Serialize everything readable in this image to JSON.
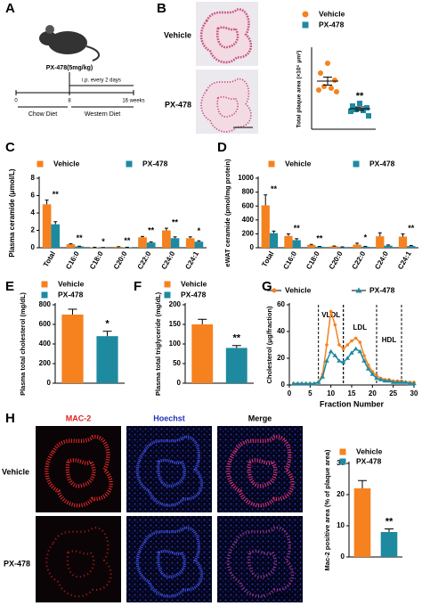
{
  "panel_labels": [
    "A",
    "B",
    "C",
    "D",
    "E",
    "F",
    "G",
    "H"
  ],
  "panel_a": {
    "drug": "PX-478(5mg/kg)",
    "dosing": "i.p. every 2 days",
    "timepoints": [
      "0",
      "8",
      "16 weeks"
    ],
    "phases": [
      "Chow Diet",
      "Western Diet"
    ]
  },
  "panel_b": {
    "row_labels": [
      "Vehicle",
      "PX-478"
    ]
  },
  "panel_h": {
    "column_labels": [
      "MAC-2",
      "Hoechst",
      "Merge"
    ],
    "row_labels": [
      "Vehicle",
      "PX-478"
    ]
  },
  "chart_data": [
    {
      "type": "dotplot",
      "y_label": "Total plaque area (×10⁵ μm²)",
      "ylim": [
        0,
        9
      ],
      "series": [
        {
          "name": "Vehicle",
          "color": "#f5821f",
          "marker": "circle",
          "values": [
            7.4,
            6.3,
            5.5,
            4.8,
            4.6,
            4.4,
            4.2
          ],
          "mean": 5.4,
          "error": 0.45
        },
        {
          "name": "PX-478",
          "color": "#1e8aa0",
          "marker": "square",
          "values": [
            2.9,
            2.6,
            2.4,
            2.2,
            2.1,
            2.0,
            1.5
          ],
          "mean": 2.3,
          "error": 0.2
        }
      ],
      "significance": [
        "**"
      ]
    },
    {
      "type": "bar",
      "y_label": "Plasma ceramide (μmol/L)",
      "ylim": [
        0,
        8
      ],
      "yticks": [
        0,
        2,
        4,
        6,
        8
      ],
      "categories": [
        "Total",
        "C16:0",
        "C18:0",
        "C20:0",
        "C22:0",
        "C24:0",
        "C24:1"
      ],
      "series": [
        {
          "name": "Vehicle",
          "color": "#f5821f",
          "values": [
            5.0,
            0.4,
            0.05,
            0.1,
            1.2,
            2.0,
            1.1
          ],
          "errors": [
            0.5,
            0.05,
            0.01,
            0.02,
            0.1,
            0.25,
            0.15
          ]
        },
        {
          "name": "PX-478",
          "color": "#1e8aa0",
          "values": [
            2.7,
            0.15,
            0.02,
            0.05,
            0.6,
            1.1,
            0.7
          ],
          "errors": [
            0.3,
            0.03,
            0.01,
            0.01,
            0.08,
            0.15,
            0.1
          ]
        }
      ],
      "significance": [
        "**",
        "**",
        "*",
        "**",
        "**",
        "**",
        "*"
      ]
    },
    {
      "type": "bar",
      "y_label": "eWAT ceramide (pmol/mg protein)",
      "ylim": [
        0,
        1000
      ],
      "yticks": [
        0,
        200,
        400,
        600,
        800,
        1000
      ],
      "categories": [
        "Total",
        "C16:0",
        "C18:0",
        "C20:0",
        "C22:0",
        "C24:0",
        "C24:1"
      ],
      "series": [
        {
          "name": "Vehicle",
          "color": "#f5821f",
          "values": [
            610,
            170,
            40,
            20,
            45,
            165,
            160
          ],
          "errors": [
            150,
            30,
            8,
            5,
            20,
            50,
            40
          ]
        },
        {
          "name": "PX-478",
          "color": "#1e8aa0",
          "values": [
            210,
            110,
            15,
            10,
            15,
            30,
            25
          ],
          "errors": [
            30,
            20,
            4,
            3,
            5,
            10,
            8
          ]
        }
      ],
      "significance": [
        "**",
        "**",
        "**",
        null,
        "*",
        null,
        "**"
      ]
    },
    {
      "type": "bar",
      "y_label": "Plasma total cholesterol (mg/dL)",
      "ylim": [
        0,
        800
      ],
      "yticks": [
        0,
        200,
        400,
        600,
        800
      ],
      "series": [
        {
          "name": "Vehicle",
          "color": "#f5821f",
          "values": [
            700
          ],
          "errors": [
            55
          ]
        },
        {
          "name": "PX-478",
          "color": "#1e8aa0",
          "values": [
            480
          ],
          "errors": [
            50
          ]
        }
      ],
      "significance": [
        "*"
      ]
    },
    {
      "type": "bar",
      "y_label": "Plasma total triglyceride (mg/dL)",
      "ylim": [
        0,
        200
      ],
      "yticks": [
        0,
        50,
        100,
        150,
        200
      ],
      "series": [
        {
          "name": "Vehicle",
          "color": "#f5821f",
          "values": [
            150
          ],
          "errors": [
            13
          ]
        },
        {
          "name": "PX-478",
          "color": "#1e8aa0",
          "values": [
            90
          ],
          "errors": [
            6
          ]
        }
      ],
      "significance": [
        "**"
      ]
    },
    {
      "type": "line",
      "y_label": "Cholesterol (μg/fraction)",
      "x_label": "Fraction Number",
      "xlim": [
        0,
        30
      ],
      "xticks": [
        0,
        5,
        10,
        15,
        20,
        25,
        30
      ],
      "ylim": [
        0,
        60
      ],
      "yticks": [
        0,
        20,
        40,
        60
      ],
      "x": [
        1,
        2,
        3,
        4,
        5,
        6,
        7,
        8,
        9,
        10,
        11,
        12,
        13,
        14,
        15,
        16,
        17,
        18,
        19,
        20,
        21,
        22,
        23,
        24,
        25,
        26,
        27,
        28,
        29,
        30
      ],
      "series": [
        {
          "name": "Vehicle",
          "color": "#f5821f",
          "marker": "circle",
          "values": [
            1,
            1,
            1,
            1,
            1,
            1,
            2,
            8,
            30,
            55,
            45,
            30,
            27,
            30,
            33,
            35,
            32,
            22,
            15,
            10,
            7,
            5,
            4,
            4,
            3,
            3,
            3,
            2,
            2,
            2
          ]
        },
        {
          "name": "PX-478",
          "color": "#1e8aa0",
          "marker": "triangle",
          "values": [
            1,
            1,
            1,
            1,
            1,
            1,
            2,
            6,
            18,
            25,
            22,
            18,
            17,
            20,
            24,
            27,
            25,
            18,
            12,
            8,
            5,
            4,
            3,
            3,
            2,
            2,
            2,
            2,
            1,
            1
          ]
        }
      ],
      "regions": [
        {
          "label": "VLDL",
          "from": 7,
          "to": 13
        },
        {
          "label": "LDL",
          "from": 13,
          "to": 21
        },
        {
          "label": "HDL",
          "from": 21,
          "to": 27
        }
      ]
    },
    {
      "type": "bar",
      "y_label": "Mac-2 positive area (% of plaque area)",
      "ylim": [
        0,
        30
      ],
      "yticks": [
        0,
        10,
        20,
        30
      ],
      "series": [
        {
          "name": "Vehicle",
          "color": "#f5821f",
          "values": [
            22
          ],
          "errors": [
            2.5
          ]
        },
        {
          "name": "PX-478",
          "color": "#1e8aa0",
          "values": [
            8
          ],
          "errors": [
            1
          ]
        }
      ],
      "significance": [
        "**"
      ]
    }
  ]
}
